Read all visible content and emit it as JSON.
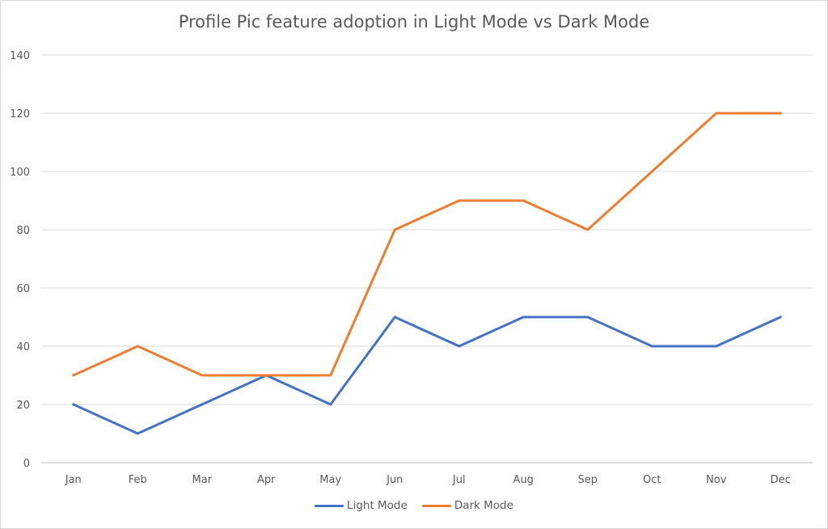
{
  "chart_data": {
    "type": "line",
    "title": "Profile Pic feature adoption in Light Mode vs Dark Mode",
    "categories": [
      "Jan",
      "Feb",
      "Mar",
      "Apr",
      "May",
      "Jun",
      "Jul",
      "Aug",
      "Sep",
      "Oct",
      "Nov",
      "Dec"
    ],
    "series": [
      {
        "name": "Light Mode",
        "color": "#4472C4",
        "values": [
          20,
          10,
          20,
          30,
          20,
          50,
          40,
          50,
          50,
          40,
          40,
          50
        ]
      },
      {
        "name": "Dark Mode",
        "color": "#ED7D31",
        "values": [
          30,
          40,
          30,
          30,
          30,
          80,
          90,
          90,
          80,
          100,
          120,
          120
        ]
      }
    ],
    "yticks": [
      0,
      20,
      40,
      60,
      80,
      100,
      120,
      140
    ],
    "ylim": [
      0,
      140
    ],
    "xlabel": "",
    "ylabel": "",
    "grid": true,
    "legend_position": "bottom"
  }
}
